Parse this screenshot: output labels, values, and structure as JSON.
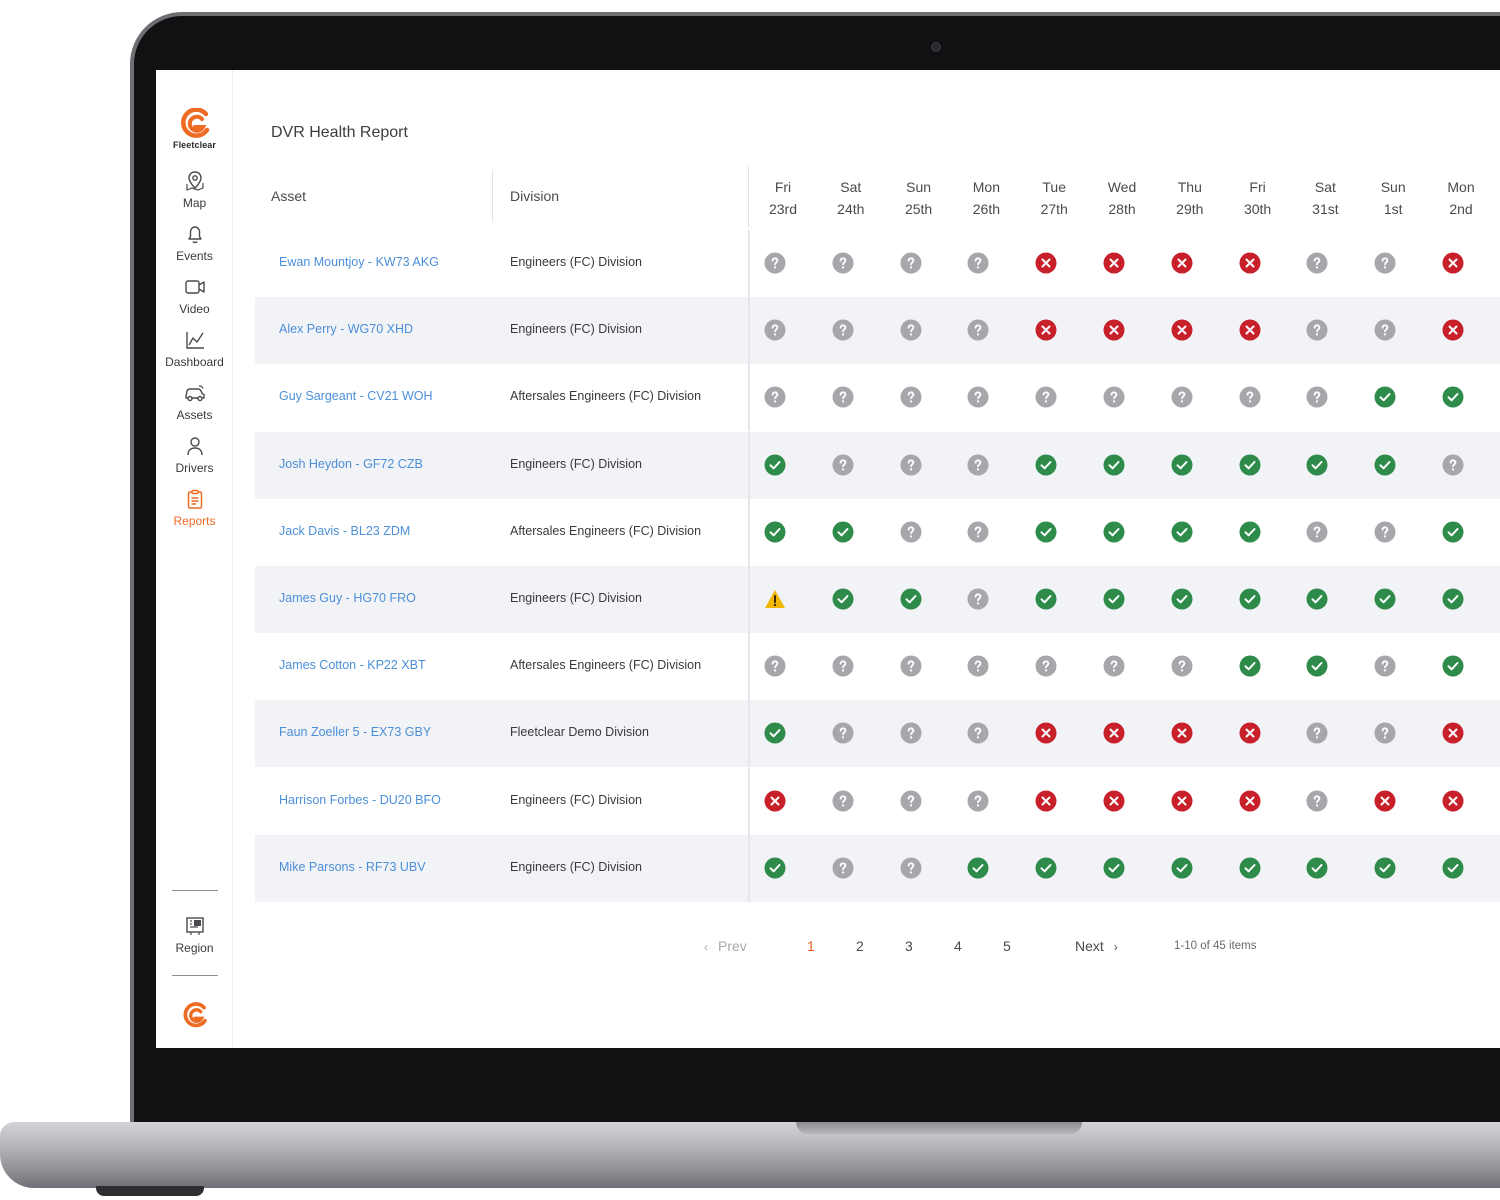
{
  "brand": {
    "name": "Fleetclear",
    "color": "#EE6B24"
  },
  "sidebar": {
    "items": [
      {
        "label": "Map",
        "icon": "map-pin-icon"
      },
      {
        "label": "Events",
        "icon": "bell-icon"
      },
      {
        "label": "Video",
        "icon": "video-camera-icon"
      },
      {
        "label": "Dashboard",
        "icon": "line-chart-icon"
      },
      {
        "label": "Assets",
        "icon": "car-icon"
      },
      {
        "label": "Drivers",
        "icon": "person-icon"
      },
      {
        "label": "Reports",
        "icon": "clipboard-icon",
        "active": true
      }
    ],
    "region_label": "Region"
  },
  "report": {
    "title": "DVR Health Report",
    "columns": {
      "asset": "Asset",
      "division": "Division"
    },
    "days": [
      {
        "dow": "Fri",
        "date": "23rd"
      },
      {
        "dow": "Sat",
        "date": "24th"
      },
      {
        "dow": "Sun",
        "date": "25th"
      },
      {
        "dow": "Mon",
        "date": "26th"
      },
      {
        "dow": "Tue",
        "date": "27th"
      },
      {
        "dow": "Wed",
        "date": "28th"
      },
      {
        "dow": "Thu",
        "date": "29th"
      },
      {
        "dow": "Fri",
        "date": "30th"
      },
      {
        "dow": "Sat",
        "date": "31st"
      },
      {
        "dow": "Sun",
        "date": "1st"
      },
      {
        "dow": "Mon",
        "date": "2nd"
      }
    ],
    "rows": [
      {
        "asset": "Ewan Mountjoy - KW73 AKG",
        "division": "Engineers (FC) Division",
        "statuses": [
          "unknown",
          "unknown",
          "unknown",
          "unknown",
          "fail",
          "fail",
          "fail",
          "fail",
          "unknown",
          "unknown",
          "fail"
        ]
      },
      {
        "asset": "Alex Perry - WG70 XHD",
        "division": "Engineers (FC) Division",
        "statuses": [
          "unknown",
          "unknown",
          "unknown",
          "unknown",
          "fail",
          "fail",
          "fail",
          "fail",
          "unknown",
          "unknown",
          "fail"
        ]
      },
      {
        "asset": "Guy Sargeant - CV21 WOH",
        "division": "Aftersales Engineers (FC) Division",
        "statuses": [
          "unknown",
          "unknown",
          "unknown",
          "unknown",
          "unknown",
          "unknown",
          "unknown",
          "unknown",
          "unknown",
          "ok",
          "ok"
        ]
      },
      {
        "asset": "Josh Heydon - GF72 CZB",
        "division": "Engineers (FC) Division",
        "statuses": [
          "ok",
          "unknown",
          "unknown",
          "unknown",
          "ok",
          "ok",
          "ok",
          "ok",
          "ok",
          "ok",
          "unknown"
        ]
      },
      {
        "asset": "Jack Davis - BL23 ZDM",
        "division": "Aftersales Engineers (FC) Division",
        "statuses": [
          "ok",
          "ok",
          "unknown",
          "unknown",
          "ok",
          "ok",
          "ok",
          "ok",
          "unknown",
          "unknown",
          "ok"
        ]
      },
      {
        "asset": "James Guy - HG70 FRO",
        "division": "Engineers (FC) Division",
        "statuses": [
          "warning",
          "ok",
          "ok",
          "unknown",
          "ok",
          "ok",
          "ok",
          "ok",
          "ok",
          "ok",
          "ok"
        ]
      },
      {
        "asset": "James Cotton - KP22 XBT",
        "division": "Aftersales Engineers (FC) Division",
        "statuses": [
          "unknown",
          "unknown",
          "unknown",
          "unknown",
          "unknown",
          "unknown",
          "unknown",
          "ok",
          "ok",
          "unknown",
          "ok"
        ]
      },
      {
        "asset": "Faun Zoeller 5 - EX73 GBY",
        "division": "Fleetclear Demo Division",
        "statuses": [
          "ok",
          "unknown",
          "unknown",
          "unknown",
          "fail",
          "fail",
          "fail",
          "fail",
          "unknown",
          "unknown",
          "fail"
        ]
      },
      {
        "asset": "Harrison Forbes - DU20 BFO",
        "division": "Engineers (FC) Division",
        "statuses": [
          "fail",
          "unknown",
          "unknown",
          "unknown",
          "fail",
          "fail",
          "fail",
          "fail",
          "unknown",
          "fail",
          "fail"
        ]
      },
      {
        "asset": "Mike Parsons - RF73 UBV",
        "division": "Engineers (FC) Division",
        "statuses": [
          "ok",
          "unknown",
          "unknown",
          "ok",
          "ok",
          "ok",
          "ok",
          "ok",
          "ok",
          "ok",
          "ok"
        ]
      }
    ],
    "status_colors": {
      "ok": "#2E8B4A",
      "fail": "#C8202B",
      "unknown": "#A7A6AB",
      "warning": "#F2B705"
    }
  },
  "pagination": {
    "prev_label": "Prev",
    "next_label": "Next",
    "pages": [
      "1",
      "2",
      "3",
      "4",
      "5"
    ],
    "current_page": "1",
    "summary": "1-10 of 45 items"
  }
}
